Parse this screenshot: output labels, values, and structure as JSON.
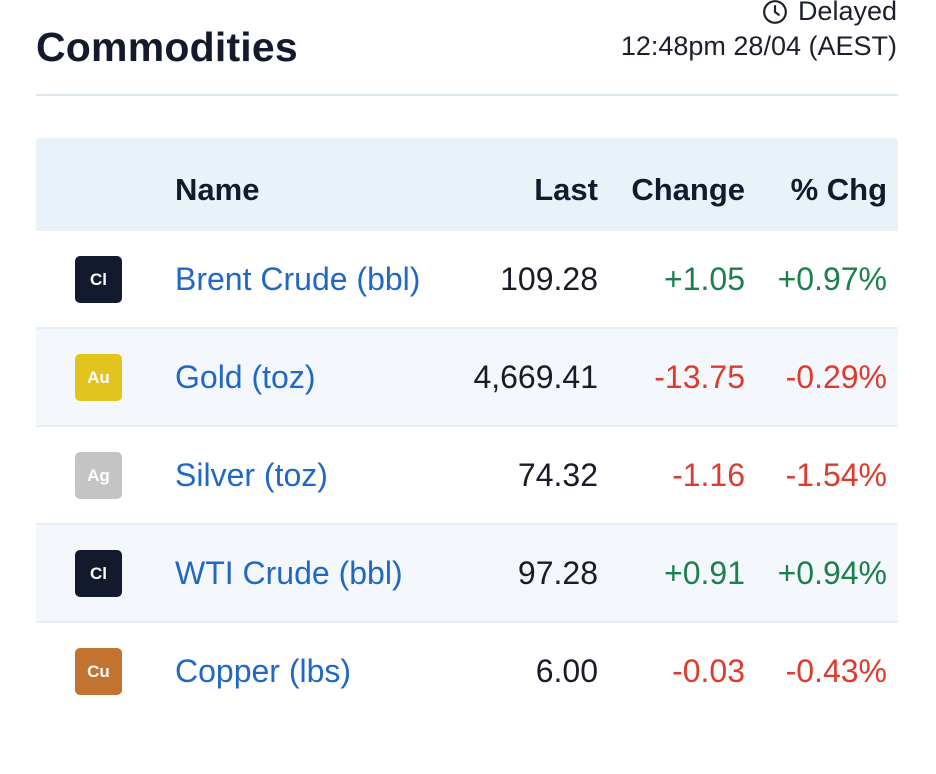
{
  "header": {
    "title": "Commodities",
    "delayed_label": "Delayed",
    "timestamp": "12:48pm 28/04 (AEST)"
  },
  "table": {
    "columns": {
      "name": "Name",
      "last": "Last",
      "change": "Change",
      "pct": "% Chg"
    },
    "rows": [
      {
        "badge": "Cl",
        "badge_color": "#141a2e",
        "name": "Brent Crude (bbl)",
        "last": "109.28",
        "change": "+1.05",
        "pct": "+0.97%",
        "direction": "pos"
      },
      {
        "badge": "Au",
        "badge_color": "#e3c31d",
        "name": "Gold (toz)",
        "last": "4,669.41",
        "change": "-13.75",
        "pct": "-0.29%",
        "direction": "neg"
      },
      {
        "badge": "Ag",
        "badge_color": "#c4c4c4",
        "name": "Silver (toz)",
        "last": "74.32",
        "change": "-1.16",
        "pct": "-1.54%",
        "direction": "neg"
      },
      {
        "badge": "Cl",
        "badge_color": "#141a2e",
        "name": "WTI Crude (bbl)",
        "last": "97.28",
        "change": "+0.91",
        "pct": "+0.94%",
        "direction": "pos"
      },
      {
        "badge": "Cu",
        "badge_color": "#c27330",
        "name": "Copper (lbs)",
        "last": "6.00",
        "change": "-0.03",
        "pct": "-0.43%",
        "direction": "neg"
      }
    ]
  },
  "colors": {
    "positive": "#1c7f4c",
    "negative": "#e0392e",
    "link": "#2168c6",
    "header_bg": "#e9f1f9"
  },
  "icons": {
    "delayed": "clock-icon"
  }
}
